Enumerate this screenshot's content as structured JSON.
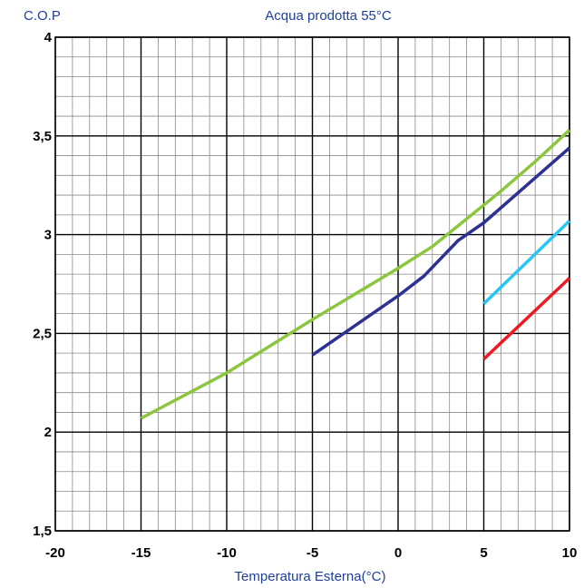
{
  "chart_data": {
    "type": "line",
    "title": "Acqua prodotta 55°C",
    "ylabel": "C.O.P",
    "xlabel": "Temperatura Esterna(°C)",
    "xlim": [
      -20,
      10
    ],
    "ylim": [
      1.5,
      4
    ],
    "x_ticks": [
      -20,
      -15,
      -10,
      -5,
      0,
      5,
      10
    ],
    "x_tick_labels": [
      "-20",
      "-15",
      "-10",
      "-5",
      "0",
      "5",
      "10"
    ],
    "y_ticks": [
      1.5,
      2,
      2.5,
      3,
      3.5,
      4
    ],
    "y_tick_labels": [
      "1,5",
      "2",
      "2,5",
      "3",
      "3,5",
      "4"
    ],
    "grid": true,
    "series": [
      {
        "color": "#8cc63f",
        "x": [
          -15,
          -10,
          -5,
          0,
          2,
          4,
          6,
          8,
          10
        ],
        "y": [
          2.07,
          2.3,
          2.57,
          2.83,
          2.94,
          3.08,
          3.22,
          3.37,
          3.53
        ]
      },
      {
        "color": "#2e3192",
        "x": [
          -5,
          0,
          1.5,
          3.5,
          5,
          10
        ],
        "y": [
          2.39,
          2.69,
          2.79,
          2.97,
          3.06,
          3.44
        ]
      },
      {
        "color": "#29c5f6",
        "x": [
          5,
          10
        ],
        "y": [
          2.65,
          3.07
        ]
      },
      {
        "color": "#ed1c24",
        "x": [
          5,
          10
        ],
        "y": [
          2.37,
          2.78
        ]
      }
    ]
  }
}
